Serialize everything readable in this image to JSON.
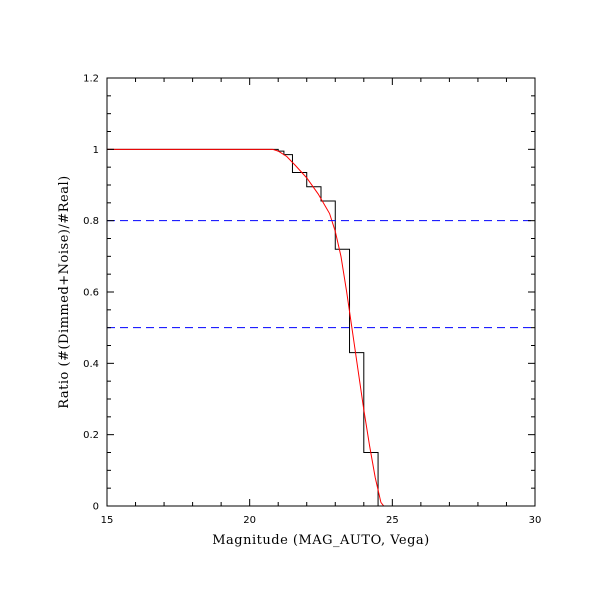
{
  "chart_data": {
    "type": "line",
    "xlabel": "Magnitude (MAG_AUTO, Vega)",
    "ylabel": "Ratio (#(Dimmed+Noise)/#Real)",
    "xlim": [
      15,
      30
    ],
    "ylim": [
      0,
      1.2
    ],
    "x_ticks": [
      15,
      20,
      25,
      30
    ],
    "x_tick_labels": [
      "15",
      "20",
      "25",
      "30"
    ],
    "y_ticks": [
      0,
      0.2,
      0.4,
      0.6,
      0.8,
      1,
      1.2
    ],
    "y_tick_labels": [
      "0",
      "0.2",
      "0.4",
      "0.6",
      "0.8",
      "1",
      "1.2"
    ],
    "grid": false,
    "series": [
      {
        "style": "step",
        "color": "#000000",
        "x": [
          15.0,
          21.0,
          21.0,
          21.2,
          21.2,
          21.5,
          21.5,
          22.0,
          22.0,
          22.5,
          22.5,
          23.0,
          23.0,
          23.5,
          23.5,
          24.0,
          24.0,
          24.5,
          24.5,
          30.0
        ],
        "y": [
          1.0,
          1.0,
          0.995,
          0.995,
          0.985,
          0.985,
          0.935,
          0.935,
          0.895,
          0.895,
          0.855,
          0.855,
          0.72,
          0.72,
          0.43,
          0.43,
          0.15,
          0.15,
          0.0,
          0.0
        ]
      },
      {
        "style": "line",
        "color": "#ff0000",
        "x": [
          15.0,
          20.8,
          21.0,
          21.3,
          21.6,
          22.0,
          22.4,
          22.8,
          23.0,
          23.2,
          23.4,
          23.6,
          23.8,
          24.0,
          24.2,
          24.4,
          24.6,
          24.7,
          30.0
        ],
        "y": [
          1.0,
          1.0,
          0.995,
          0.98,
          0.955,
          0.92,
          0.875,
          0.82,
          0.77,
          0.7,
          0.6,
          0.49,
          0.38,
          0.27,
          0.17,
          0.08,
          0.01,
          0.0,
          0.0
        ]
      },
      {
        "style": "dashed",
        "color": "#0000ff",
        "x": [
          15,
          30
        ],
        "y": [
          0.8,
          0.8
        ]
      },
      {
        "style": "dashed",
        "color": "#0000ff",
        "x": [
          15,
          30
        ],
        "y": [
          0.5,
          0.5
        ]
      }
    ]
  }
}
